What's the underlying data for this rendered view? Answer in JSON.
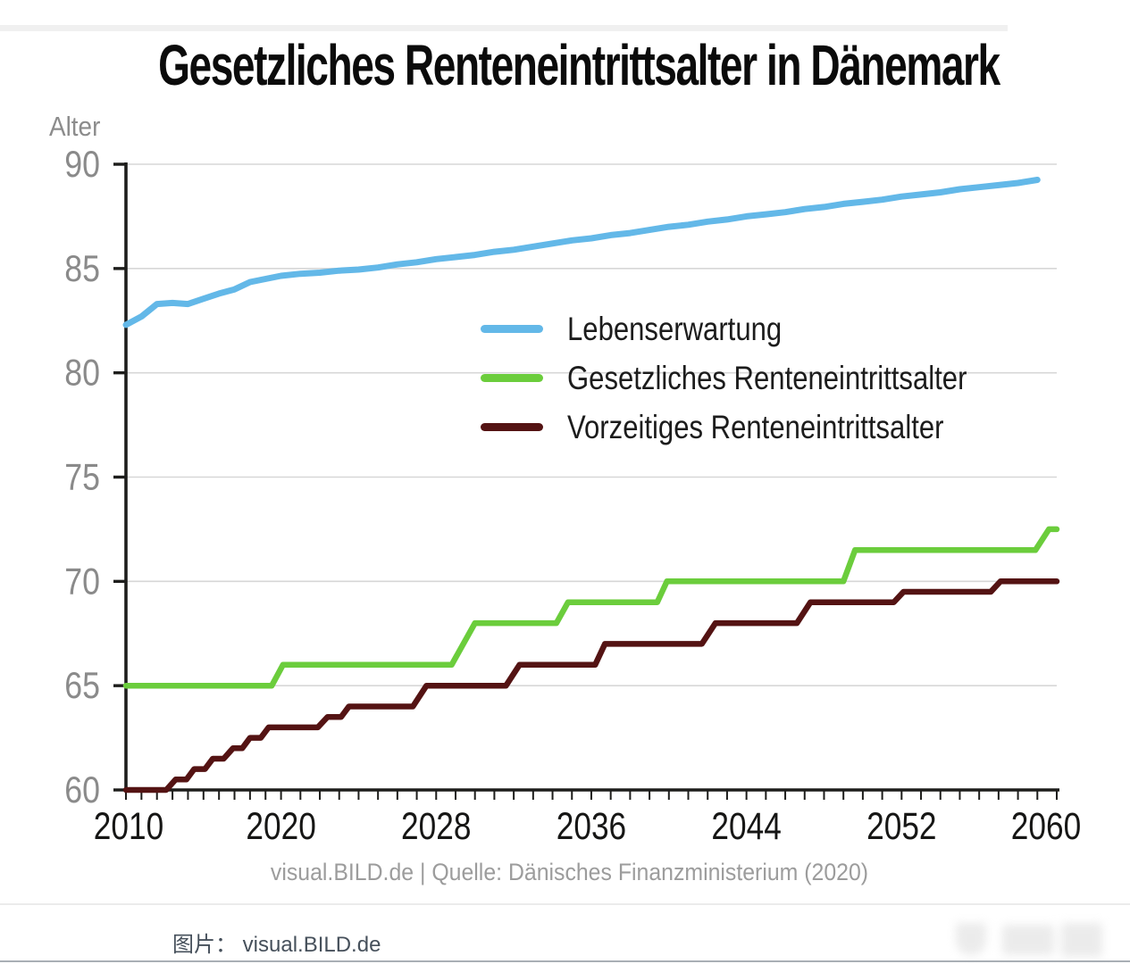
{
  "page": {
    "caption": "图片： visual.BILD.de",
    "source_line": "visual.BILD.de | Quelle: Dänisches Finanzministerium (2020)"
  },
  "chart_data": {
    "type": "line",
    "title": "Gesetzliches Renteneintrittsalter in Dänemark",
    "xlabel": "",
    "ylabel": "Alter",
    "ylim": [
      60,
      90
    ],
    "xlim": [
      2010,
      2060
    ],
    "grid": "horizontal",
    "legend_position": "upper-middle-right",
    "y_ticks": [
      90,
      85,
      80,
      75,
      70,
      65,
      60
    ],
    "x_tick_labels": [
      "2010",
      "2020",
      "2028",
      "2036",
      "2044",
      "2052",
      "2060"
    ],
    "x_tick_years": [
      2010,
      2020,
      2028,
      2036,
      2044,
      2052,
      2060
    ],
    "x_minor_tick_every": 1,
    "colors": {
      "axis": "#1d1d1b",
      "grid": "#d7d7d7",
      "y_tick_label": "#8a8a8a",
      "x_tick_label": "#161615"
    },
    "series": [
      {
        "name": "Lebenserwartung",
        "color": "#63b8e8",
        "style": "line",
        "x_start": 2010,
        "x_step": 1,
        "values": [
          82.3,
          82.7,
          83.3,
          83.35,
          83.3,
          83.55,
          83.8,
          84.0,
          84.35,
          84.5,
          84.65,
          84.75,
          84.8,
          84.9,
          84.95,
          85.05,
          85.2,
          85.3,
          85.45,
          85.55,
          85.65,
          85.8,
          85.9,
          86.05,
          86.2,
          86.35,
          86.45,
          86.6,
          86.7,
          86.85,
          87.0,
          87.1,
          87.25,
          87.35,
          87.5,
          87.6,
          87.7,
          87.85,
          87.95,
          88.1,
          88.2,
          88.3,
          88.45,
          88.55,
          88.65,
          88.8,
          88.9,
          89.0,
          89.1,
          89.25
        ]
      },
      {
        "name": "Gesetzliches Renteneintrittsalter",
        "color": "#6bcd3c",
        "style": "step",
        "plateaus": [
          {
            "value": 65,
            "from": 2010,
            "to": 2019.4
          },
          {
            "value": 66,
            "from": 2020.1,
            "to": 2028.8
          },
          {
            "value": 68,
            "from": 2030.0,
            "to": 2034.2
          },
          {
            "value": 69,
            "from": 2034.8,
            "to": 2039.4
          },
          {
            "value": 70,
            "from": 2039.9,
            "to": 2049.0
          },
          {
            "value": 71.5,
            "from": 2049.6,
            "to": 2058.9
          },
          {
            "value": 72.5,
            "from": 2059.6,
            "to": 2060
          }
        ]
      },
      {
        "name": "Vorzeitiges Renteneintrittsalter",
        "color": "#541313",
        "style": "step",
        "plateaus": [
          {
            "value": 60,
            "from": 2010,
            "to": 2012.6
          },
          {
            "value": 60.5,
            "from": 2013.2,
            "to": 2013.9
          },
          {
            "value": 61,
            "from": 2014.4,
            "to": 2015.1
          },
          {
            "value": 61.5,
            "from": 2015.6,
            "to": 2016.3
          },
          {
            "value": 62,
            "from": 2016.9,
            "to": 2017.5
          },
          {
            "value": 62.5,
            "from": 2018.0,
            "to": 2018.7
          },
          {
            "value": 63,
            "from": 2019.2,
            "to": 2021.9
          },
          {
            "value": 63.5,
            "from": 2022.4,
            "to": 2023.1
          },
          {
            "value": 64,
            "from": 2023.5,
            "to": 2026.8
          },
          {
            "value": 65,
            "from": 2027.5,
            "to": 2031.6
          },
          {
            "value": 66,
            "from": 2032.3,
            "to": 2036.2
          },
          {
            "value": 67,
            "from": 2036.7,
            "to": 2041.7
          },
          {
            "value": 68,
            "from": 2042.4,
            "to": 2046.6
          },
          {
            "value": 69,
            "from": 2047.3,
            "to": 2051.6
          },
          {
            "value": 69.5,
            "from": 2052.1,
            "to": 2056.6
          },
          {
            "value": 70,
            "from": 2057.1,
            "to": 2060
          }
        ]
      }
    ]
  }
}
